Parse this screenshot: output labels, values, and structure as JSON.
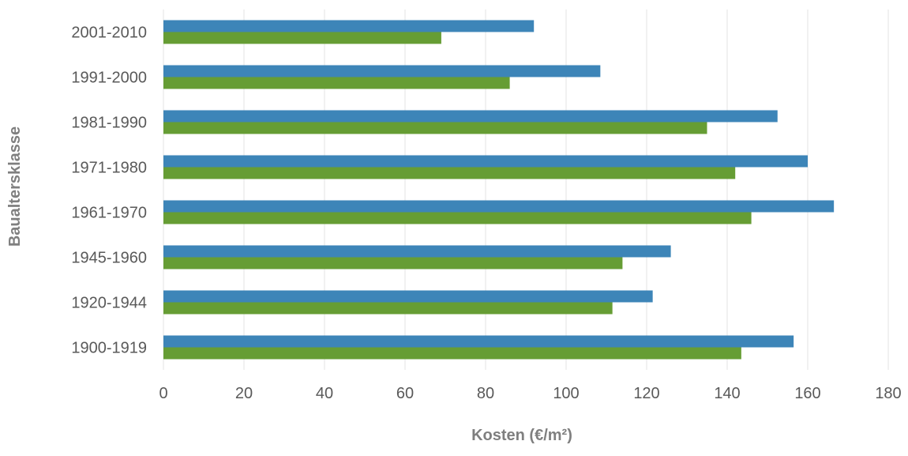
{
  "chart_data": {
    "type": "bar",
    "orientation": "horizontal",
    "categories": [
      "2001-2010",
      "1991-2000",
      "1981-1990",
      "1971-1980",
      "1961-1970",
      "1945-1960",
      "1920-1944",
      "1900-1919"
    ],
    "series": [
      {
        "color": "#3d85b8",
        "values": [
          92,
          108.5,
          152.5,
          160,
          166.5,
          126,
          121.5,
          156.5
        ]
      },
      {
        "color": "#669d34",
        "values": [
          69,
          86,
          135,
          142,
          146,
          114,
          111.5,
          143.5
        ]
      }
    ],
    "xlabel": "Kosten (€/m²)",
    "ylabel": "Baualtersklasse",
    "xlim": [
      0,
      180
    ],
    "xticks": [
      "0",
      "20",
      "40",
      "60",
      "80",
      "100",
      "120",
      "140",
      "160",
      "180"
    ],
    "grid": "vertical",
    "legend": "none"
  }
}
